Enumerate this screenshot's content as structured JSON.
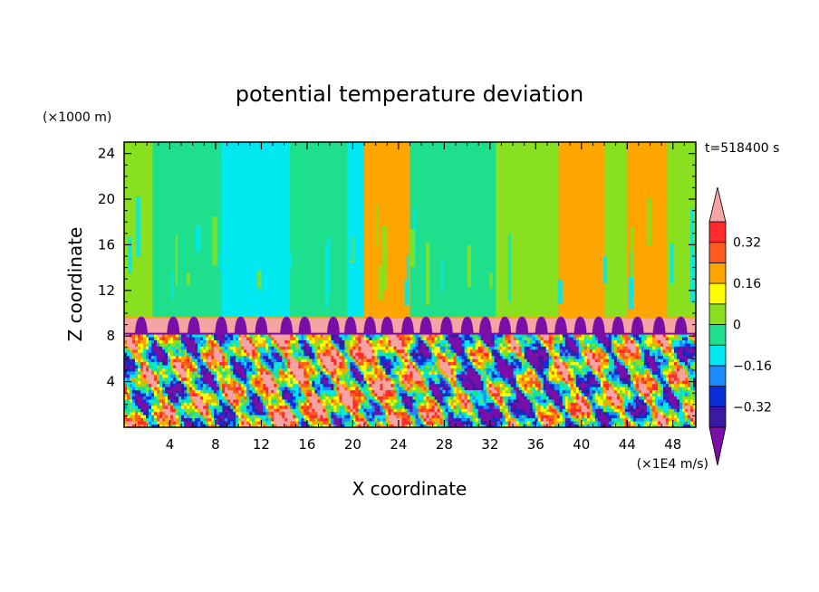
{
  "chart_data": {
    "type": "heatmap",
    "title": "potential temperature deviation",
    "xlabel": "X coordinate",
    "ylabel": "Z coordinate",
    "x_unit": "(×1E4 m/s)",
    "y_unit": "(×1000 m)",
    "time_label": "t=518400 s",
    "xlim": [
      0,
      50
    ],
    "ylim": [
      0,
      25
    ],
    "x_ticks": [
      4,
      8,
      12,
      16,
      20,
      24,
      28,
      32,
      36,
      40,
      44,
      48
    ],
    "y_ticks": [
      4,
      8,
      12,
      16,
      20,
      24
    ],
    "colorbar": {
      "levels": [
        -0.4,
        -0.32,
        -0.24,
        -0.16,
        -0.08,
        0,
        0.08,
        0.16,
        0.24,
        0.32,
        0.4
      ],
      "labels": [
        "0.32",
        "0.16",
        "0",
        "−0.16",
        "−0.32"
      ],
      "label_values": [
        0.32,
        0.16,
        0,
        -0.16,
        -0.32
      ],
      "colors": [
        "#7a0fa8",
        "#3b1aa0",
        "#0a2fd8",
        "#1a8cff",
        "#00e8f0",
        "#1ee08c",
        "#88e01e",
        "#ffff00",
        "#ffa500",
        "#ff5a1e",
        "#ff2a2a",
        "#f5a3a3"
      ],
      "extend": "both"
    },
    "upper_band_columns": [
      {
        "x": [
          0,
          2.5
        ],
        "value": 0.04
      },
      {
        "x": [
          2.5,
          8.5
        ],
        "value": -0.04
      },
      {
        "x": [
          8.5,
          14.5
        ],
        "value": -0.13
      },
      {
        "x": [
          14.5,
          19.5
        ],
        "value": -0.04
      },
      {
        "x": [
          19.5,
          21
        ],
        "value": -0.13
      },
      {
        "x": [
          21,
          25
        ],
        "value": 0.2
      },
      {
        "x": [
          25,
          32.5
        ],
        "value": -0.04
      },
      {
        "x": [
          32.5,
          38
        ],
        "value": 0.04
      },
      {
        "x": [
          38,
          42
        ],
        "value": 0.2
      },
      {
        "x": [
          42,
          44
        ],
        "value": 0.04
      },
      {
        "x": [
          44,
          47.5
        ],
        "value": 0.2
      },
      {
        "x": [
          47.5,
          50
        ],
        "value": 0.04
      }
    ],
    "stable_layer": {
      "z": [
        8.2,
        9.6
      ],
      "value": 0.45
    },
    "boundary_bumps_x": [
      1.5,
      4.3,
      6.1,
      8.5,
      10.2,
      12,
      14.2,
      15.8,
      18.3,
      19.8,
      21.5,
      23,
      24.8,
      26.4,
      28.2,
      30,
      31.6,
      33.3,
      34.8,
      36.5,
      38.2,
      39.9,
      41.5,
      43.2,
      44.9,
      46.8,
      48.7
    ],
    "lower_layer": {
      "z": [
        0,
        8.2
      ],
      "description_values_range": [
        -0.4,
        0.4
      ]
    }
  }
}
